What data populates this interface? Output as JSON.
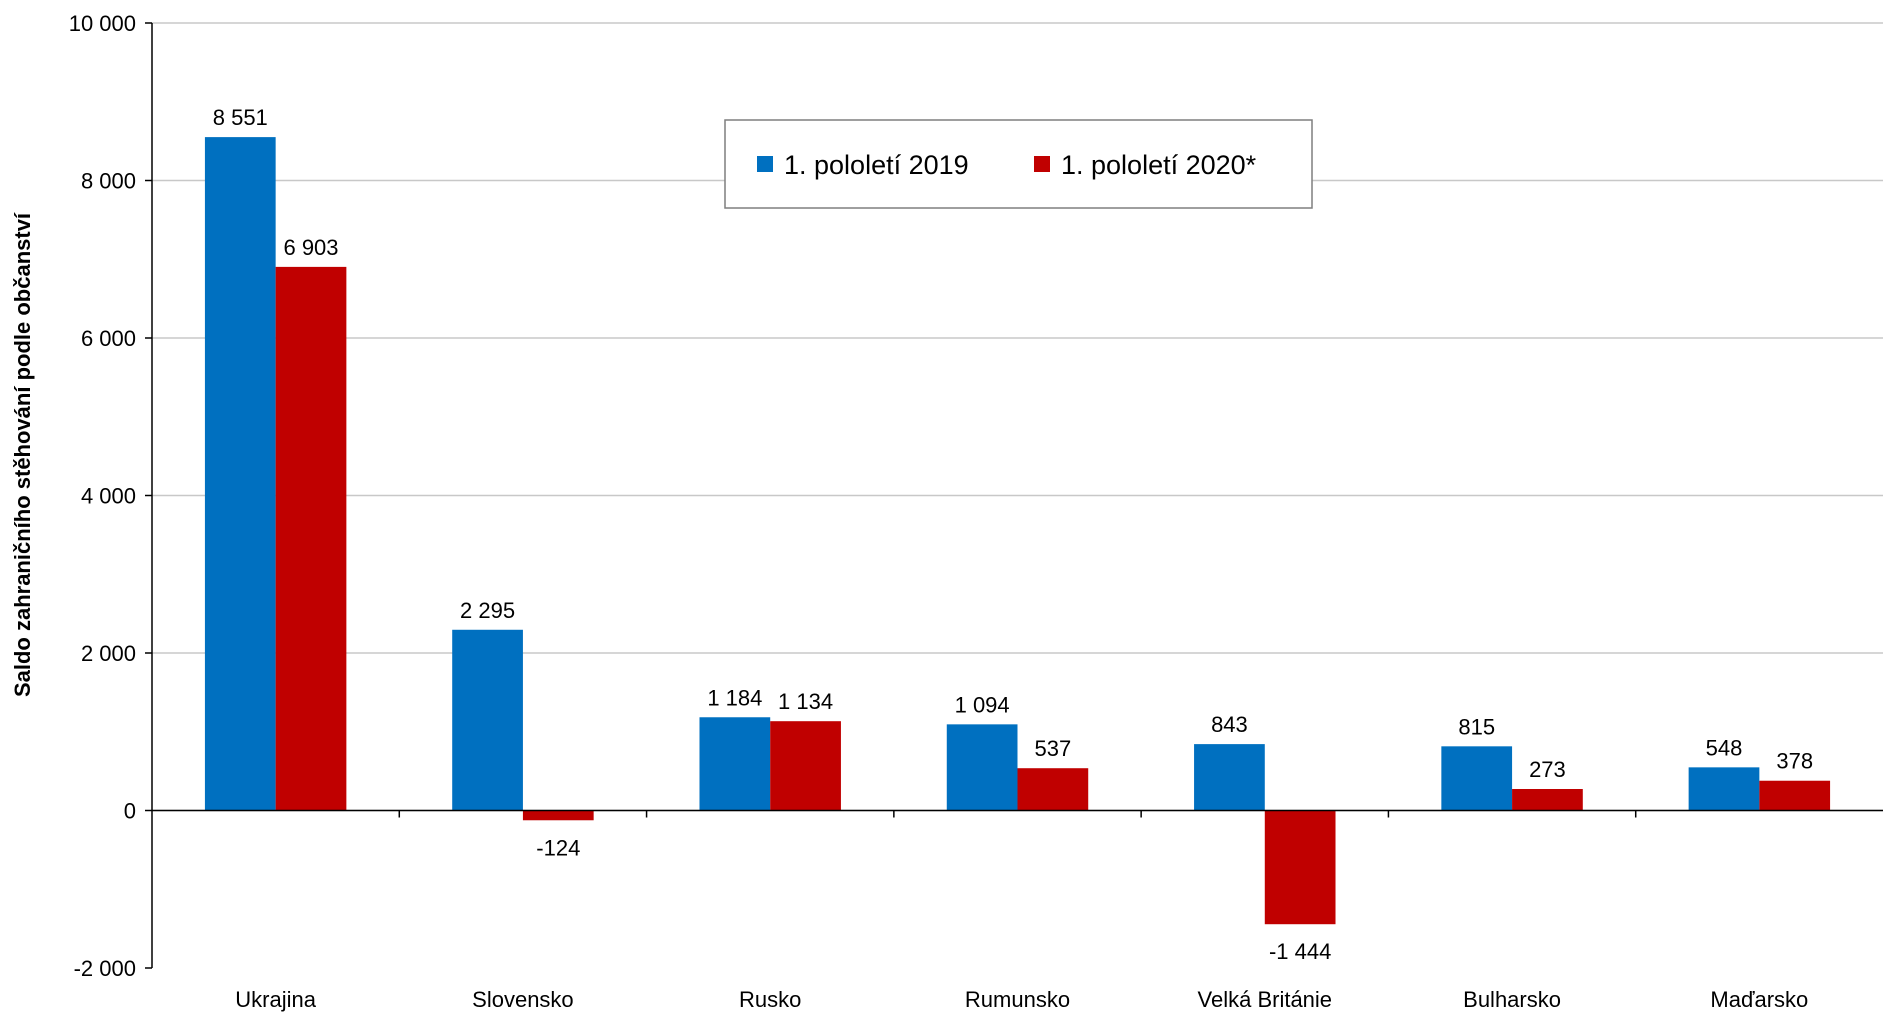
{
  "chart_data": {
    "type": "bar",
    "categories": [
      "Ukrajina",
      "Slovensko",
      "Rusko",
      "Rumunsko",
      "Velká Británie",
      "Bulharsko",
      "Maďarsko"
    ],
    "series": [
      {
        "name": "1. pololetí 2019",
        "values": [
          8551,
          2295,
          1184,
          1094,
          843,
          815,
          548
        ],
        "labels": [
          "8 551",
          "2 295",
          "1 184",
          "1 094",
          "843",
          "815",
          "548"
        ]
      },
      {
        "name": "1. pololetí 2020*",
        "values": [
          6903,
          -124,
          1134,
          537,
          -1444,
          273,
          378
        ],
        "labels": [
          "6 903",
          "-124",
          "1 134",
          "537",
          "-1 444",
          "273",
          "378"
        ]
      }
    ],
    "title": "",
    "xlabel": "",
    "ylabel": "Saldo zahraničního stěhování podle občanství",
    "ylim": [
      -2000,
      10000
    ],
    "yticks": [
      -2000,
      0,
      2000,
      4000,
      6000,
      8000,
      10000
    ],
    "ytick_labels": [
      "-2 000",
      "0",
      "2 000",
      "4 000",
      "6 000",
      "8 000",
      "10 000"
    ],
    "grid": true,
    "legend_position": "top-center"
  },
  "colors": {
    "series_2019": "#0070c0",
    "series_2020": "#c00000",
    "grid": "#c8c8c8"
  }
}
